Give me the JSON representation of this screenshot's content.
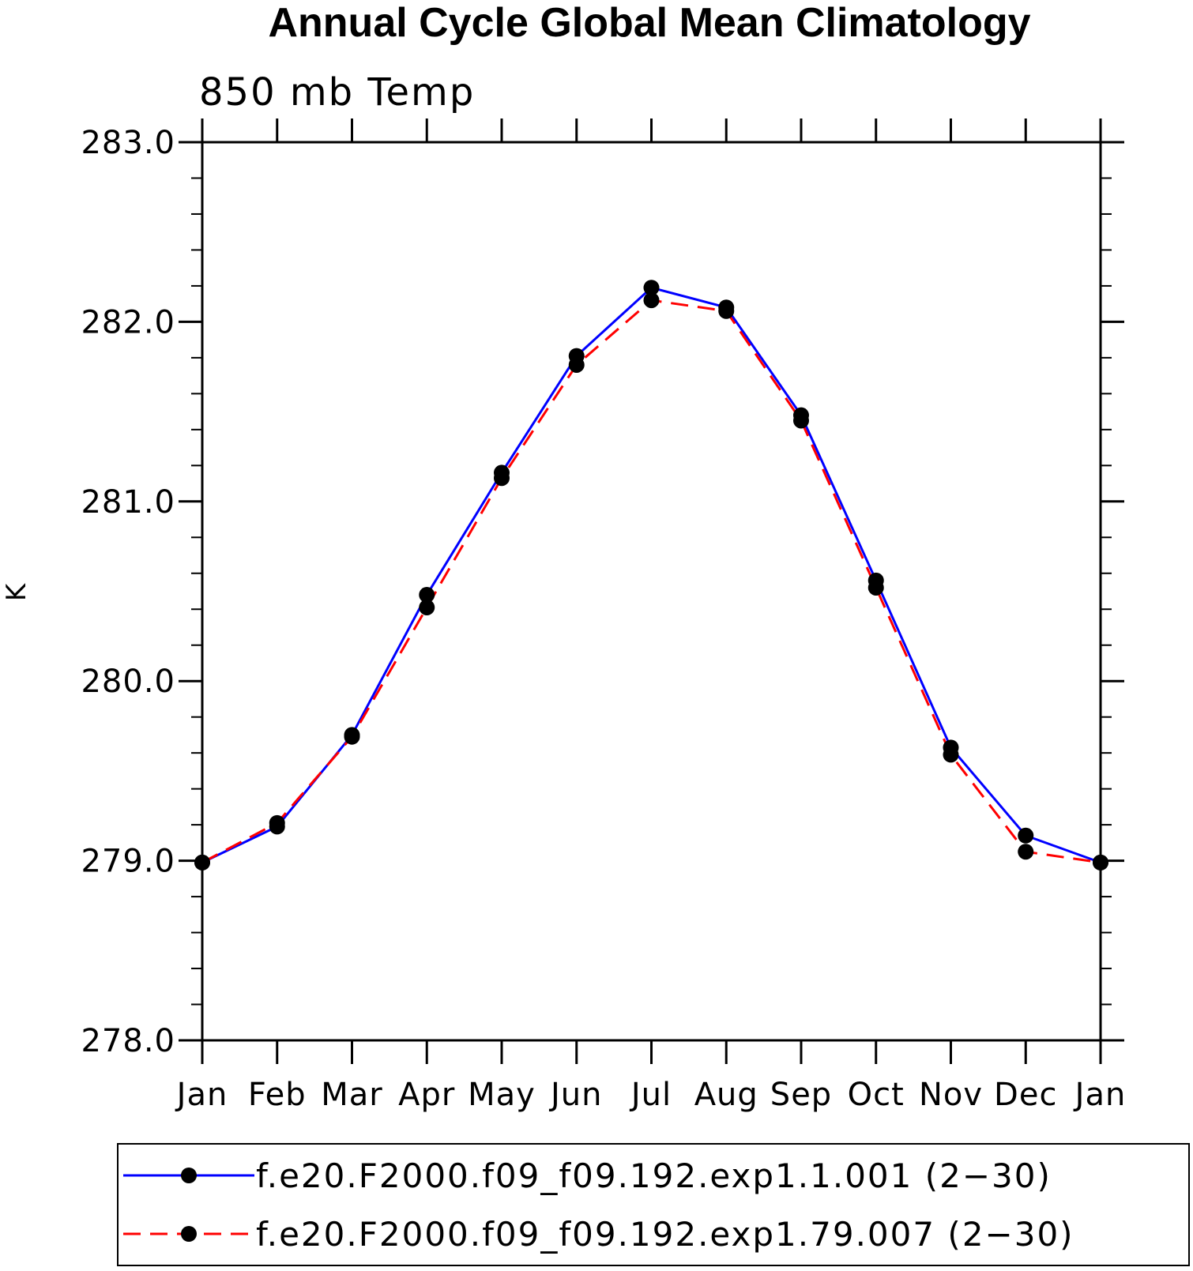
{
  "chart_data": {
    "type": "line",
    "title": "Annual Cycle Global Mean Climatology",
    "subtitle": "850 mb Temp",
    "ylabel": "K",
    "xlabel": "",
    "categories": [
      "Jan",
      "Feb",
      "Mar",
      "Apr",
      "May",
      "Jun",
      "Jul",
      "Aug",
      "Sep",
      "Oct",
      "Nov",
      "Dec",
      "Jan"
    ],
    "ylim": [
      278.0,
      283.0
    ],
    "yticks": [
      278.0,
      279.0,
      280.0,
      281.0,
      282.0,
      283.0
    ],
    "ytick_labels": [
      "278.0",
      "279.0",
      "280.0",
      "281.0",
      "282.0",
      "283.0"
    ],
    "y_minor_step": 0.2,
    "grid": false,
    "legend_position": "bottom",
    "series": [
      {
        "name": "f.e20.F2000.f09_f09.192.exp1.1.001 (2−30)",
        "color": "#0000ff",
        "dash": "solid",
        "marker": "filled-circle",
        "values": [
          278.99,
          279.19,
          279.7,
          280.48,
          281.16,
          281.81,
          282.19,
          282.08,
          281.48,
          280.56,
          279.63,
          279.14,
          278.99
        ]
      },
      {
        "name": "f.e20.F2000.f09_f09.192.exp1.79.007 (2−30)",
        "color": "#ff0000",
        "dash": "dashed",
        "marker": "filled-circle",
        "values": [
          278.99,
          279.21,
          279.69,
          280.41,
          281.13,
          281.76,
          282.12,
          282.06,
          281.45,
          280.52,
          279.59,
          279.05,
          278.99
        ]
      }
    ]
  }
}
